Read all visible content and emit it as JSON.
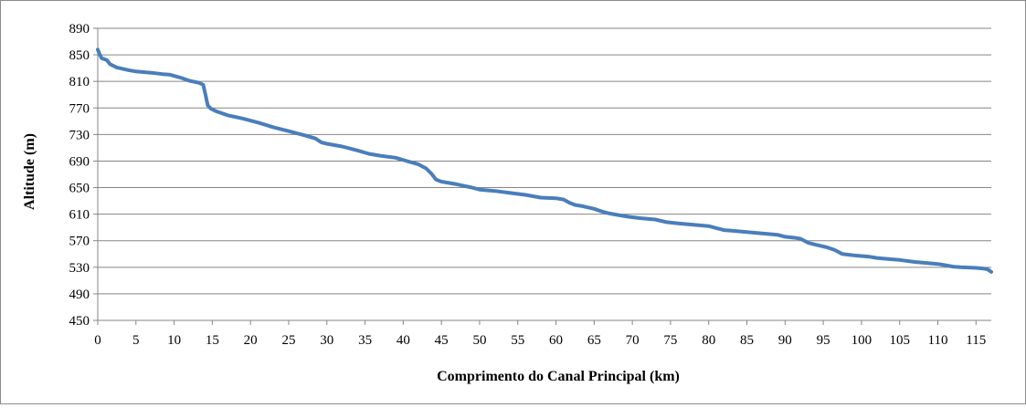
{
  "chart_data": {
    "type": "line",
    "title": "",
    "xlabel": "Comprimento do Canal Principal (km)",
    "ylabel": "Altitude (m)",
    "xlim": [
      0,
      117
    ],
    "ylim": [
      450,
      890
    ],
    "x_ticks": [
      0,
      5,
      10,
      15,
      20,
      25,
      30,
      35,
      40,
      45,
      50,
      55,
      60,
      65,
      70,
      75,
      80,
      85,
      90,
      95,
      100,
      105,
      110,
      115
    ],
    "y_ticks": [
      450,
      490,
      530,
      570,
      610,
      650,
      690,
      730,
      770,
      810,
      850,
      890
    ],
    "grid": "horizontal",
    "legend": "none",
    "series": [
      {
        "color": "#4a7ebb",
        "points": [
          [
            0,
            858
          ],
          [
            0.2,
            852
          ],
          [
            0.5,
            845
          ],
          [
            1.2,
            842
          ],
          [
            1.6,
            836
          ],
          [
            2.5,
            831
          ],
          [
            4,
            827
          ],
          [
            5,
            825
          ],
          [
            7,
            823
          ],
          [
            8.5,
            821
          ],
          [
            9.5,
            820
          ],
          [
            11,
            815
          ],
          [
            12,
            811
          ],
          [
            13.2,
            808
          ],
          [
            13.8,
            805
          ],
          [
            14.1,
            790
          ],
          [
            14.4,
            774
          ],
          [
            14.8,
            769
          ],
          [
            15.5,
            765
          ],
          [
            17,
            759
          ],
          [
            19,
            754
          ],
          [
            21,
            748
          ],
          [
            23,
            741
          ],
          [
            25,
            735
          ],
          [
            27,
            729
          ],
          [
            28.5,
            724
          ],
          [
            29.3,
            718
          ],
          [
            30,
            716
          ],
          [
            32,
            712
          ],
          [
            34,
            706
          ],
          [
            35.5,
            701
          ],
          [
            37,
            698
          ],
          [
            39,
            695
          ],
          [
            40.5,
            690
          ],
          [
            42,
            685
          ],
          [
            43,
            679
          ],
          [
            43.7,
            671
          ],
          [
            44.3,
            662
          ],
          [
            45,
            659
          ],
          [
            47,
            655
          ],
          [
            49,
            650
          ],
          [
            50,
            647
          ],
          [
            52,
            645
          ],
          [
            54,
            642
          ],
          [
            56,
            639
          ],
          [
            57,
            637
          ],
          [
            58,
            635
          ],
          [
            60,
            634
          ],
          [
            61,
            632
          ],
          [
            61.8,
            627
          ],
          [
            62.5,
            624
          ],
          [
            63.5,
            622
          ],
          [
            65,
            618
          ],
          [
            66,
            614
          ],
          [
            67,
            611
          ],
          [
            68,
            609
          ],
          [
            69.5,
            606
          ],
          [
            71,
            604
          ],
          [
            73,
            602
          ],
          [
            74.5,
            598
          ],
          [
            76,
            596
          ],
          [
            78,
            594
          ],
          [
            80,
            592
          ],
          [
            81,
            589
          ],
          [
            82,
            586
          ],
          [
            83,
            585
          ],
          [
            85,
            583
          ],
          [
            87,
            581
          ],
          [
            89,
            579
          ],
          [
            90,
            576
          ],
          [
            91.5,
            574
          ],
          [
            92,
            573
          ],
          [
            93,
            567
          ],
          [
            94,
            564
          ],
          [
            95.5,
            560
          ],
          [
            96.5,
            556
          ],
          [
            97.5,
            550
          ],
          [
            99,
            548
          ],
          [
            101,
            546
          ],
          [
            102,
            544
          ],
          [
            103,
            543
          ],
          [
            104,
            542
          ],
          [
            105,
            541
          ],
          [
            107,
            538
          ],
          [
            109,
            536
          ],
          [
            110,
            535
          ],
          [
            111,
            533
          ],
          [
            112,
            531
          ],
          [
            113,
            530
          ],
          [
            115,
            529
          ],
          [
            116,
            528
          ],
          [
            116.5,
            527
          ],
          [
            117,
            523
          ]
        ]
      }
    ]
  }
}
